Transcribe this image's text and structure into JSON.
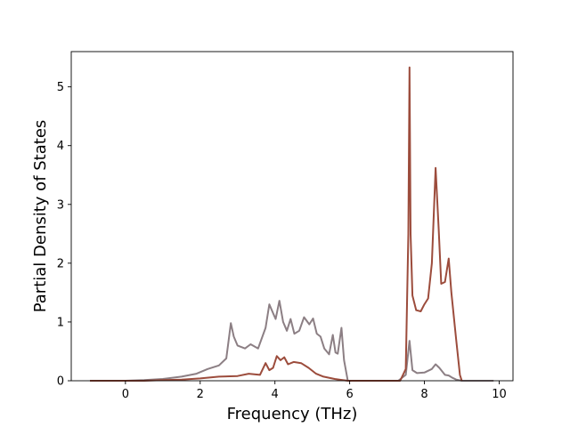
{
  "chart_data": {
    "type": "line",
    "title": "",
    "xlabel": "Frequency (THz)",
    "ylabel": "Partial Density of States",
    "xlim": [
      -1.45,
      10.37
    ],
    "ylim": [
      0,
      5.6
    ],
    "xticks": [
      0,
      2,
      4,
      6,
      8,
      10
    ],
    "yticks": [
      0,
      1,
      2,
      3,
      4,
      5
    ],
    "grid": false,
    "legend": "none",
    "series": [
      {
        "color": "#8c7f84",
        "points": [
          [
            -0.95,
            0
          ],
          [
            0.0,
            0.0
          ],
          [
            0.5,
            0.01
          ],
          [
            1.0,
            0.03
          ],
          [
            1.5,
            0.07
          ],
          [
            1.9,
            0.12
          ],
          [
            2.2,
            0.2
          ],
          [
            2.5,
            0.26
          ],
          [
            2.7,
            0.38
          ],
          [
            2.82,
            0.98
          ],
          [
            2.9,
            0.75
          ],
          [
            3.0,
            0.6
          ],
          [
            3.2,
            0.55
          ],
          [
            3.35,
            0.62
          ],
          [
            3.55,
            0.55
          ],
          [
            3.75,
            0.9
          ],
          [
            3.85,
            1.3
          ],
          [
            3.95,
            1.15
          ],
          [
            4.02,
            1.05
          ],
          [
            4.12,
            1.36
          ],
          [
            4.22,
            1.0
          ],
          [
            4.32,
            0.85
          ],
          [
            4.42,
            1.05
          ],
          [
            4.52,
            0.8
          ],
          [
            4.65,
            0.85
          ],
          [
            4.78,
            1.08
          ],
          [
            4.92,
            0.96
          ],
          [
            5.02,
            1.06
          ],
          [
            5.12,
            0.8
          ],
          [
            5.22,
            0.75
          ],
          [
            5.32,
            0.55
          ],
          [
            5.45,
            0.45
          ],
          [
            5.55,
            0.78
          ],
          [
            5.62,
            0.48
          ],
          [
            5.68,
            0.46
          ],
          [
            5.78,
            0.9
          ],
          [
            5.85,
            0.35
          ],
          [
            5.95,
            0.0
          ],
          [
            7.3,
            0.0
          ],
          [
            7.5,
            0.1
          ],
          [
            7.6,
            0.68
          ],
          [
            7.68,
            0.18
          ],
          [
            7.8,
            0.13
          ],
          [
            8.0,
            0.14
          ],
          [
            8.2,
            0.2
          ],
          [
            8.3,
            0.28
          ],
          [
            8.4,
            0.22
          ],
          [
            8.55,
            0.1
          ],
          [
            8.65,
            0.09
          ],
          [
            8.75,
            0.05
          ],
          [
            8.85,
            0.02
          ],
          [
            9.0,
            0.0
          ],
          [
            9.85,
            0.0
          ]
        ]
      },
      {
        "color": "#9c4c3c",
        "points": [
          [
            -0.95,
            0
          ],
          [
            0.5,
            0.0
          ],
          [
            1.0,
            0.01
          ],
          [
            1.5,
            0.02
          ],
          [
            2.0,
            0.04
          ],
          [
            2.5,
            0.07
          ],
          [
            3.0,
            0.08
          ],
          [
            3.3,
            0.12
          ],
          [
            3.6,
            0.1
          ],
          [
            3.75,
            0.3
          ],
          [
            3.85,
            0.18
          ],
          [
            3.95,
            0.22
          ],
          [
            4.05,
            0.42
          ],
          [
            4.15,
            0.35
          ],
          [
            4.25,
            0.4
          ],
          [
            4.35,
            0.28
          ],
          [
            4.5,
            0.32
          ],
          [
            4.7,
            0.3
          ],
          [
            4.9,
            0.22
          ],
          [
            5.1,
            0.12
          ],
          [
            5.3,
            0.07
          ],
          [
            5.6,
            0.03
          ],
          [
            5.95,
            0.0
          ],
          [
            7.35,
            0.0
          ],
          [
            7.5,
            0.2
          ],
          [
            7.57,
            2.5
          ],
          [
            7.6,
            5.33
          ],
          [
            7.63,
            2.5
          ],
          [
            7.68,
            1.45
          ],
          [
            7.78,
            1.2
          ],
          [
            7.9,
            1.18
          ],
          [
            8.0,
            1.3
          ],
          [
            8.1,
            1.4
          ],
          [
            8.2,
            2.0
          ],
          [
            8.3,
            3.62
          ],
          [
            8.38,
            2.6
          ],
          [
            8.45,
            1.65
          ],
          [
            8.55,
            1.68
          ],
          [
            8.65,
            2.08
          ],
          [
            8.72,
            1.5
          ],
          [
            8.85,
            0.7
          ],
          [
            8.95,
            0.1
          ],
          [
            9.0,
            0.0
          ]
        ]
      }
    ]
  }
}
